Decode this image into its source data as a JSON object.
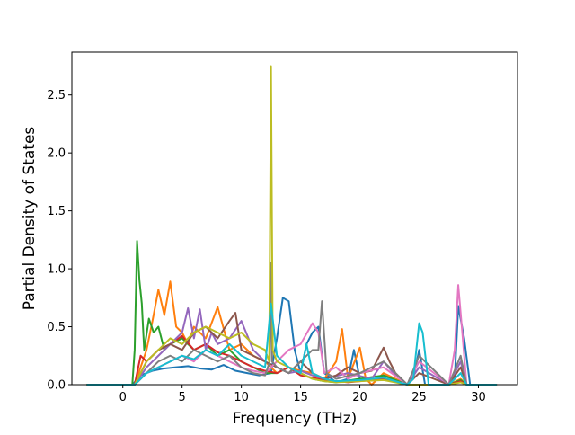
{
  "chart_data": {
    "type": "line",
    "title": "",
    "xlabel": "Frequency (THz)",
    "ylabel": "Partial Density of States",
    "xlim": [
      -4.3,
      33.3
    ],
    "ylim": [
      0,
      2.87
    ],
    "xticks": [
      0,
      5,
      10,
      15,
      20,
      25,
      30
    ],
    "yticks": [
      0.0,
      0.5,
      1.0,
      1.5,
      2.0,
      2.5
    ],
    "xtick_labels": [
      "0",
      "5",
      "10",
      "15",
      "20",
      "25",
      "30"
    ],
    "ytick_labels": [
      "0.0",
      "0.5",
      "1.0",
      "1.5",
      "2.0",
      "2.5"
    ],
    "grid": false,
    "legend": "none",
    "series": [
      {
        "color": "#1f77b4",
        "x": [
          -3,
          0.8,
          1.5,
          2.5,
          3.5,
          4.5,
          5.5,
          6.5,
          7.5,
          8.5,
          9.5,
          10.5,
          11.5,
          12.5,
          13,
          13.5,
          14,
          14.5,
          15,
          15.5,
          16,
          16.5,
          17,
          18,
          19,
          19.5,
          20,
          21,
          22,
          23,
          24,
          24.5,
          25,
          25.5,
          27.5,
          28,
          28.3,
          28.8,
          29.3,
          31.5
        ],
        "y": [
          0,
          0,
          0.08,
          0.12,
          0.14,
          0.15,
          0.16,
          0.14,
          0.13,
          0.17,
          0.12,
          0.1,
          0.08,
          0.1,
          0.4,
          0.75,
          0.72,
          0.3,
          0.1,
          0.35,
          0.45,
          0.5,
          0.1,
          0.02,
          0.05,
          0.3,
          0.05,
          0.04,
          0.08,
          0.05,
          0,
          0.05,
          0.3,
          0.0,
          0,
          0.05,
          0.68,
          0.4,
          0,
          0
        ]
      },
      {
        "color": "#ff7f0e",
        "x": [
          -3,
          1.0,
          2.0,
          2.5,
          3.0,
          3.5,
          4.0,
          4.5,
          5.0,
          5.5,
          6.0,
          7.0,
          8.0,
          9.0,
          10.0,
          11.0,
          12.0,
          12.5,
          13.0,
          14.0,
          15.0,
          16.0,
          17.0,
          18.0,
          18.5,
          19.0,
          20.0,
          20.5,
          21.0,
          22.0,
          23.0,
          24.0,
          27.5,
          28.5,
          29.0,
          31.5
        ],
        "y": [
          0,
          0,
          0.3,
          0.55,
          0.82,
          0.6,
          0.89,
          0.5,
          0.45,
          0.35,
          0.5,
          0.4,
          0.67,
          0.3,
          0.35,
          0.25,
          0.2,
          0.15,
          0.1,
          0.15,
          0.12,
          0.1,
          0.05,
          0.2,
          0.48,
          0.05,
          0.32,
          0.05,
          0.0,
          0.1,
          0.05,
          0,
          0,
          0.05,
          0.0,
          0
        ]
      },
      {
        "color": "#2ca02c",
        "x": [
          -3,
          0.8,
          1.0,
          1.2,
          1.4,
          1.6,
          1.8,
          2.2,
          2.6,
          3.0,
          3.5,
          4.0,
          5.0,
          6.0,
          7.0,
          8.0,
          9.0,
          10.0,
          11.0,
          12.0,
          13.0,
          14.0,
          15.0,
          16.0,
          17.0,
          18.0,
          20.0,
          22.0,
          24.0,
          27.5,
          28.5,
          29.0,
          31.5
        ],
        "y": [
          0,
          0,
          0.3,
          1.24,
          0.9,
          0.7,
          0.3,
          0.57,
          0.45,
          0.5,
          0.3,
          0.35,
          0.4,
          0.3,
          0.35,
          0.25,
          0.3,
          0.2,
          0.15,
          0.1,
          0.1,
          0.15,
          0.1,
          0.05,
          0.03,
          0.02,
          0.05,
          0.08,
          0,
          0,
          0.04,
          0,
          0
        ]
      },
      {
        "color": "#d62728",
        "x": [
          -3,
          1.0,
          1.5,
          2.0,
          3.0,
          4.0,
          5.0,
          6.0,
          7.0,
          8.0,
          9.0,
          10.0,
          11.0,
          12.0,
          13.0,
          14.0,
          15.0,
          16.0,
          17.0,
          19.0,
          20.0,
          22.0,
          24.0,
          27.5,
          28.5,
          29.0,
          31.5
        ],
        "y": [
          0,
          0,
          0.25,
          0.2,
          0.3,
          0.35,
          0.42,
          0.3,
          0.35,
          0.28,
          0.25,
          0.2,
          0.15,
          0.12,
          0.1,
          0.15,
          0.08,
          0.06,
          0.04,
          0.02,
          0.03,
          0.05,
          0,
          0,
          0.03,
          0,
          0
        ]
      },
      {
        "color": "#9467bd",
        "x": [
          -3,
          1.0,
          2.0,
          3.0,
          4.0,
          5.0,
          5.5,
          6.0,
          6.5,
          7.0,
          7.5,
          8.0,
          9.0,
          10.0,
          11.0,
          12.0,
          13.0,
          14.0,
          15.0,
          16.0,
          17.0,
          19.0,
          21.0,
          22.0,
          23.0,
          24.0,
          25.0,
          27.5,
          28.5,
          29.0,
          31.5
        ],
        "y": [
          0,
          0,
          0.15,
          0.25,
          0.35,
          0.45,
          0.66,
          0.4,
          0.65,
          0.3,
          0.45,
          0.35,
          0.4,
          0.55,
          0.3,
          0.2,
          0.15,
          0.1,
          0.12,
          0.08,
          0.05,
          0.1,
          0.05,
          0.2,
          0.08,
          0,
          0.15,
          0,
          0.2,
          0,
          0
        ]
      },
      {
        "color": "#8c564b",
        "x": [
          -3,
          1.0,
          2.0,
          3.0,
          4.0,
          5.0,
          6.0,
          7.0,
          8.0,
          9.0,
          9.5,
          10.0,
          11.0,
          12.0,
          13.0,
          14.0,
          15.0,
          16.0,
          17.0,
          18.0,
          19.0,
          20.0,
          21.0,
          22.0,
          22.5,
          23.0,
          24.0,
          25.0,
          27.5,
          28.5,
          29.0,
          31.5
        ],
        "y": [
          0,
          0,
          0.2,
          0.3,
          0.35,
          0.3,
          0.45,
          0.5,
          0.4,
          0.55,
          0.62,
          0.3,
          0.25,
          0.2,
          0.15,
          0.1,
          0.2,
          0.1,
          0.05,
          0.08,
          0.15,
          0.1,
          0.12,
          0.32,
          0.2,
          0.1,
          0,
          0.1,
          0,
          0.15,
          0,
          0
        ]
      },
      {
        "color": "#e377c2",
        "x": [
          -3,
          1.0,
          2.0,
          3.0,
          4.0,
          5.0,
          6.0,
          7.0,
          8.0,
          9.0,
          10.0,
          11.0,
          12.0,
          13.0,
          14.0,
          15.0,
          16.0,
          16.5,
          17.0,
          18.0,
          19.0,
          20.0,
          22.0,
          24.0,
          25.0,
          27.5,
          28.0,
          28.3,
          28.6,
          29.0,
          31.5
        ],
        "y": [
          0,
          0,
          0.1,
          0.15,
          0.2,
          0.25,
          0.2,
          0.3,
          0.25,
          0.2,
          0.15,
          0.12,
          0.1,
          0.2,
          0.3,
          0.35,
          0.53,
          0.45,
          0.1,
          0.15,
          0.05,
          0.1,
          0.15,
          0,
          0.2,
          0,
          0.3,
          0.86,
          0.5,
          0.0,
          0
        ]
      },
      {
        "color": "#7f7f7f",
        "x": [
          -3,
          1.0,
          2.0,
          3.0,
          4.0,
          5.0,
          6.0,
          7.0,
          8.0,
          9.0,
          10.0,
          11.0,
          12.0,
          12.4,
          12.5,
          12.6,
          13.0,
          14.0,
          15.0,
          16.0,
          16.5,
          16.8,
          17.2,
          18.0,
          20.0,
          22.0,
          24.0,
          25.0,
          27.5,
          28.5,
          29.0,
          31.5
        ],
        "y": [
          0,
          0,
          0.1,
          0.2,
          0.25,
          0.2,
          0.3,
          0.25,
          0.2,
          0.25,
          0.15,
          0.1,
          0.08,
          0.2,
          1.05,
          0.2,
          0.15,
          0.1,
          0.2,
          0.3,
          0.3,
          0.72,
          0.1,
          0.05,
          0.1,
          0.2,
          0,
          0.25,
          0,
          0.25,
          0,
          0
        ]
      },
      {
        "color": "#bcbd22",
        "x": [
          -3,
          1.0,
          2.0,
          3.0,
          4.0,
          5.0,
          6.0,
          7.0,
          8.0,
          9.0,
          10.0,
          11.0,
          12.0,
          12.35,
          12.5,
          12.65,
          13.0,
          14.0,
          15.0,
          16.0,
          17.0,
          18.0,
          20.0,
          22.0,
          24.0,
          27.5,
          28.5,
          29.0,
          31.5
        ],
        "y": [
          0,
          0,
          0.2,
          0.3,
          0.4,
          0.35,
          0.45,
          0.5,
          0.45,
          0.4,
          0.45,
          0.35,
          0.3,
          0.2,
          2.75,
          0.3,
          0.2,
          0.15,
          0.1,
          0.05,
          0.03,
          0.02,
          0.03,
          0.04,
          0,
          0,
          0.02,
          0,
          0
        ]
      },
      {
        "color": "#17becf",
        "x": [
          -3,
          1.0,
          2.0,
          3.0,
          4.0,
          5.0,
          6.0,
          7.0,
          8.0,
          9.0,
          10.0,
          11.0,
          12.0,
          12.5,
          13.0,
          14.0,
          15.0,
          15.5,
          16.0,
          17.0,
          18.0,
          20.0,
          22.0,
          24.0,
          24.5,
          25.0,
          25.3,
          25.8,
          27.5,
          28.5,
          29.0,
          31.5
        ],
        "y": [
          0,
          0,
          0.1,
          0.15,
          0.2,
          0.25,
          0.22,
          0.3,
          0.25,
          0.35,
          0.25,
          0.2,
          0.15,
          0.7,
          0.25,
          0.15,
          0.1,
          0.35,
          0.1,
          0.05,
          0.03,
          0.04,
          0.06,
          0,
          0.05,
          0.53,
          0.45,
          0,
          0,
          0.1,
          0,
          0
        ]
      }
    ]
  }
}
